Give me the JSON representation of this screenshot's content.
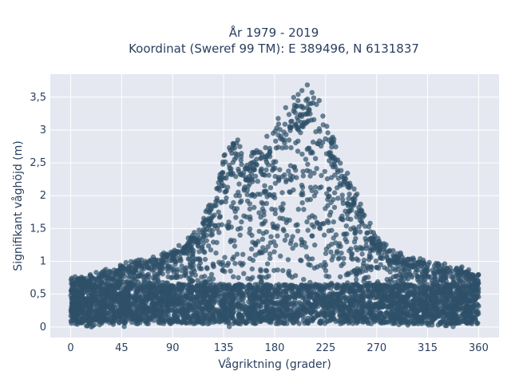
{
  "chart_data": {
    "type": "scatter",
    "title_line1": "År 1979 - 2019",
    "title_line2": "Koordinat (Sweref 99 TM): E 389496, N 6131837",
    "xlabel": "Vågriktning (grader)",
    "ylabel": "Signifikant våghöjd (m)",
    "xlim": [
      -18,
      378
    ],
    "ylim": [
      -0.16,
      3.85
    ],
    "x_ticks": [
      0,
      45,
      90,
      135,
      180,
      225,
      270,
      315,
      360
    ],
    "x_tick_labels": [
      "0",
      "45",
      "90",
      "135",
      "180",
      "225",
      "270",
      "315",
      "360"
    ],
    "y_ticks": [
      0,
      0.5,
      1,
      1.5,
      2,
      2.5,
      3,
      3.5
    ],
    "y_tick_labels": [
      "0",
      "0,5",
      "1",
      "1,5",
      "2",
      "2,5",
      "3",
      "3,5"
    ],
    "grid": true,
    "colors": {
      "plot_bg": "#e5e8f0",
      "grid": "#ffffff",
      "marker": "#2e5068"
    },
    "upper_envelope": {
      "x": [
        0,
        20,
        45,
        70,
        90,
        105,
        115,
        125,
        135,
        145,
        155,
        165,
        175,
        185,
        195,
        205,
        212,
        220,
        230,
        240,
        250,
        260,
        270,
        285,
        300,
        315,
        330,
        345,
        360
      ],
      "y": [
        0.75,
        0.8,
        0.95,
        1.05,
        1.15,
        1.35,
        1.6,
        1.95,
        2.6,
        2.9,
        2.6,
        2.7,
        2.9,
        3.3,
        3.4,
        3.6,
        3.7,
        3.4,
        2.9,
        2.5,
        2.1,
        1.7,
        1.4,
        1.15,
        1.05,
        1.0,
        0.95,
        0.9,
        0.8
      ]
    }
  }
}
